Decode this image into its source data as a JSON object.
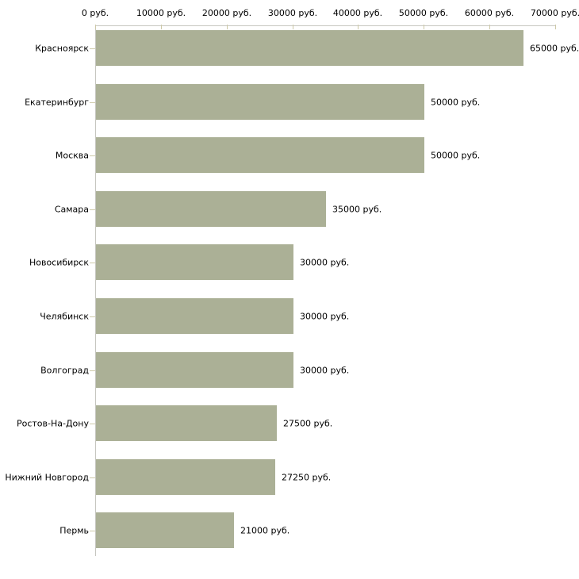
{
  "chart_data": {
    "type": "bar",
    "orientation": "horizontal",
    "title": "",
    "xlabel": "",
    "ylabel": "",
    "categories": [
      "Красноярск",
      "Екатеринбург",
      "Москва",
      "Самара",
      "Новосибирск",
      "Челябинск",
      "Волгоград",
      "Ростов-На-Дону",
      "Нижний Новгород",
      "Пермь"
    ],
    "values": [
      65000,
      50000,
      50000,
      35000,
      30000,
      30000,
      30000,
      27500,
      27250,
      21000
    ],
    "value_labels": [
      "65000 руб.",
      "50000 руб.",
      "50000 руб.",
      "35000 руб.",
      "30000 руб.",
      "30000 руб.",
      "30000 руб.",
      "27500 руб.",
      "27250 руб.",
      "21000 руб."
    ],
    "x_axis": {
      "position": "top",
      "min": 0,
      "max": 70000,
      "tick_values": [
        0,
        10000,
        20000,
        30000,
        40000,
        50000,
        60000,
        70000
      ],
      "tick_labels": [
        "0 руб.",
        "10000 руб.",
        "20000 руб.",
        "30000 руб.",
        "40000 руб.",
        "50000 руб.",
        "60000 руб.",
        "70000 руб."
      ]
    },
    "grid": false,
    "legend": false,
    "colors": {
      "bar": "#abb096",
      "tick": "#cdc9a8",
      "axis_line": "#c6c6c0",
      "text": "#000000",
      "background": "#ffffff"
    }
  }
}
